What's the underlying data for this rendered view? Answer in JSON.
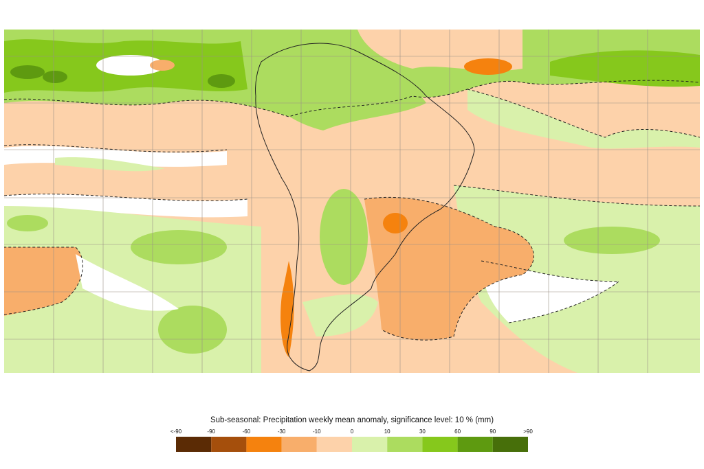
{
  "legend": {
    "title": "Sub-seasonal: Precipitation weekly mean anomaly, significance level: 10 % (mm)",
    "labels": [
      "<-90",
      "-90",
      "-60",
      "-30",
      "-10",
      "0",
      "10",
      "30",
      "60",
      "90",
      ">90"
    ],
    "colors": [
      "#5b2b05",
      "#a54f0c",
      "#f5820e",
      "#f8ae6b",
      "#fdd2aa",
      "#d9f1ab",
      "#acdc5f",
      "#86c81c",
      "#5e9a10",
      "#476f0a"
    ]
  }
}
